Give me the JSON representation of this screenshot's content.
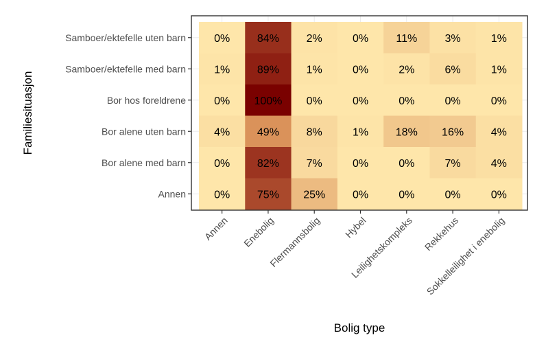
{
  "chart_data": {
    "type": "heatmap",
    "title": "",
    "xlabel": "Bolig type",
    "ylabel": "Familiesituasjon",
    "x_categories": [
      "Annen",
      "Enebolig",
      "Flermannsbolig",
      "Hybel",
      "Leilighetskompleks",
      "Rekkehus",
      "Sokkelleilighet i enebolig"
    ],
    "y_categories": [
      "Samboer/ektefelle uten barn",
      "Samboer/ektefelle med barn",
      "Bor hos foreldrene",
      "Bor alene uten barn",
      "Bor alene med barn",
      "Annen"
    ],
    "values": [
      [
        0,
        84,
        2,
        0,
        11,
        3,
        1
      ],
      [
        1,
        89,
        1,
        0,
        2,
        6,
        1
      ],
      [
        0,
        100,
        0,
        0,
        0,
        0,
        0
      ],
      [
        4,
        49,
        8,
        1,
        18,
        16,
        4
      ],
      [
        0,
        82,
        7,
        0,
        0,
        7,
        4
      ],
      [
        0,
        75,
        25,
        0,
        0,
        0,
        0
      ]
    ],
    "cell_labels": [
      [
        "0%",
        "84%",
        "2%",
        "0%",
        "11%",
        "3%",
        "1%"
      ],
      [
        "1%",
        "89%",
        "1%",
        "0%",
        "2%",
        "6%",
        "1%"
      ],
      [
        "0%",
        "100%",
        "0%",
        "0%",
        "0%",
        "0%",
        "0%"
      ],
      [
        "4%",
        "49%",
        "8%",
        "1%",
        "18%",
        "16%",
        "4%"
      ],
      [
        "0%",
        "82%",
        "7%",
        "0%",
        "0%",
        "7%",
        "4%"
      ],
      [
        "0%",
        "75%",
        "25%",
        "0%",
        "0%",
        "0%",
        "0%"
      ]
    ],
    "value_range": [
      0,
      100
    ],
    "color_low": "#fee6aa",
    "color_mid": "#d99058",
    "color_high": "#7a0100",
    "legend": "none",
    "grid": true
  }
}
